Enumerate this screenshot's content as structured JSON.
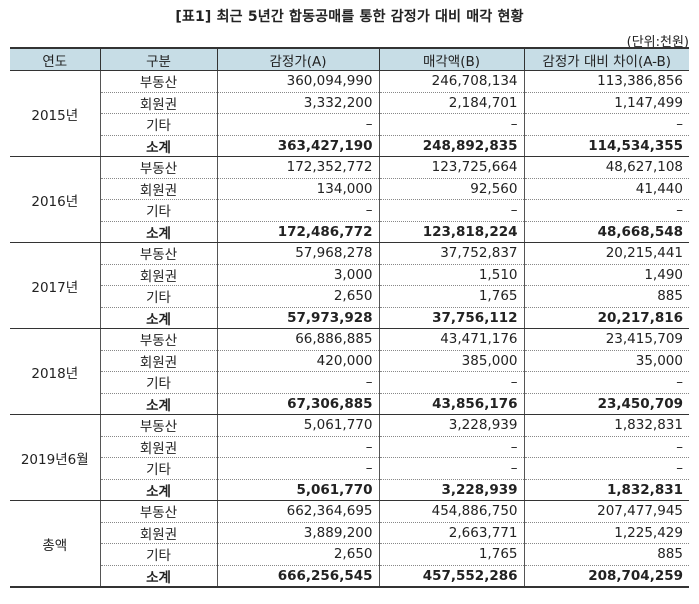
{
  "title": "[표1] 최근 5년간 합동공매를 통한 감정가 대비 매각 현황",
  "unit": "(단위:천원)",
  "headers": [
    "연도",
    "구분",
    "감정가(A)",
    "매각액(B)",
    "감정가 대비 차이(A-B)"
  ],
  "groups": [
    {
      "year": "2015년",
      "rows": [
        {
          "cat": "부동산",
          "a": "360,094,990",
          "b": "246,708,134",
          "d": "113,386,856"
        },
        {
          "cat": "회원권",
          "a": "3,332,200",
          "b": "2,184,701",
          "d": "1,147,499"
        },
        {
          "cat": "기타",
          "a": "–",
          "b": "–",
          "d": "–"
        },
        {
          "cat": "소계",
          "a": "363,427,190",
          "b": "248,892,835",
          "d": "114,534,355"
        }
      ]
    },
    {
      "year": "2016년",
      "rows": [
        {
          "cat": "부동산",
          "a": "172,352,772",
          "b": "123,725,664",
          "d": "48,627,108"
        },
        {
          "cat": "회원권",
          "a": "134,000",
          "b": "92,560",
          "d": "41,440"
        },
        {
          "cat": "기타",
          "a": "–",
          "b": "–",
          "d": "–"
        },
        {
          "cat": "소계",
          "a": "172,486,772",
          "b": "123,818,224",
          "d": "48,668,548"
        }
      ]
    },
    {
      "year": "2017년",
      "rows": [
        {
          "cat": "부동산",
          "a": "57,968,278",
          "b": "37,752,837",
          "d": "20,215,441"
        },
        {
          "cat": "회원권",
          "a": "3,000",
          "b": "1,510",
          "d": "1,490"
        },
        {
          "cat": "기타",
          "a": "2,650",
          "b": "1,765",
          "d": "885"
        },
        {
          "cat": "소계",
          "a": "57,973,928",
          "b": "37,756,112",
          "d": "20,217,816"
        }
      ]
    },
    {
      "year": "2018년",
      "rows": [
        {
          "cat": "부동산",
          "a": "66,886,885",
          "b": "43,471,176",
          "d": "23,415,709"
        },
        {
          "cat": "회원권",
          "a": "420,000",
          "b": "385,000",
          "d": "35,000"
        },
        {
          "cat": "기타",
          "a": "–",
          "b": "–",
          "d": "–"
        },
        {
          "cat": "소계",
          "a": "67,306,885",
          "b": "43,856,176",
          "d": "23,450,709"
        }
      ]
    },
    {
      "year": "2019년6월",
      "rows": [
        {
          "cat": "부동산",
          "a": "5,061,770",
          "b": "3,228,939",
          "d": "1,832,831"
        },
        {
          "cat": "회원권",
          "a": "–",
          "b": "–",
          "d": "–"
        },
        {
          "cat": "기타",
          "a": "–",
          "b": "–",
          "d": "–"
        },
        {
          "cat": "소계",
          "a": "5,061,770",
          "b": "3,228,939",
          "d": "1,832,831"
        }
      ]
    },
    {
      "year": "총액",
      "rows": [
        {
          "cat": "부동산",
          "a": "662,364,695",
          "b": "454,886,750",
          "d": "207,477,945"
        },
        {
          "cat": "회원권",
          "a": "3,889,200",
          "b": "2,663,771",
          "d": "1,225,429"
        },
        {
          "cat": "기타",
          "a": "2,650",
          "b": "1,765",
          "d": "885"
        },
        {
          "cat": "소계",
          "a": "666,256,545",
          "b": "457,552,286",
          "d": "208,704,259"
        }
      ]
    }
  ]
}
